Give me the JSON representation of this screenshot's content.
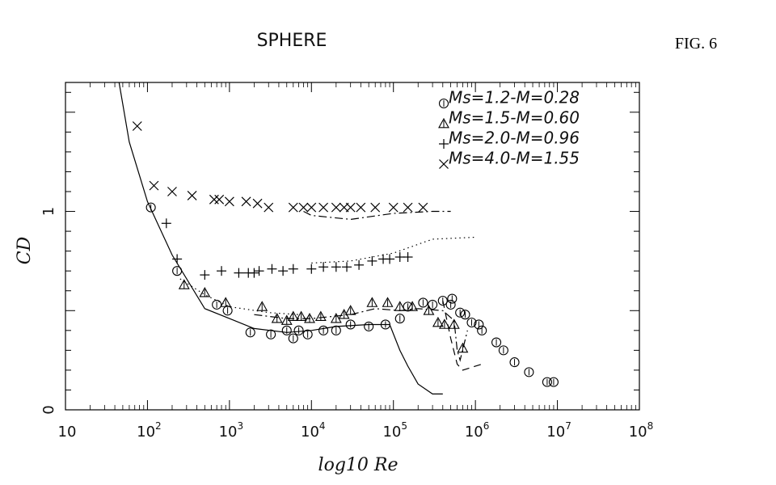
{
  "figure_label": "FIG. 6",
  "chart_data": {
    "type": "scatter",
    "title": "SPHERE",
    "xlabel": "log10 Re",
    "ylabel": "CD",
    "x_scale": "log",
    "xlim": [
      10,
      100000000
    ],
    "ylim": [
      0,
      1.65
    ],
    "x_ticks": [
      {
        "base": "10",
        "exp": ""
      },
      {
        "base": "10",
        "exp": "2"
      },
      {
        "base": "10",
        "exp": "3"
      },
      {
        "base": "10",
        "exp": "4"
      },
      {
        "base": "10",
        "exp": "5"
      },
      {
        "base": "10",
        "exp": "6"
      },
      {
        "base": "10",
        "exp": "7"
      },
      {
        "base": "10",
        "exp": "8"
      }
    ],
    "y_ticks": [
      "0",
      "1"
    ],
    "legend_position": "top-right",
    "series": [
      {
        "name": "Ms=1.2-M=0.28",
        "marker": "circle",
        "points": [
          [
            110,
            1.02
          ],
          [
            230,
            0.7
          ],
          [
            700,
            0.53
          ],
          [
            950,
            0.5
          ],
          [
            1800,
            0.39
          ],
          [
            3200,
            0.38
          ],
          [
            5000,
            0.4
          ],
          [
            6000,
            0.36
          ],
          [
            7000,
            0.4
          ],
          [
            9000,
            0.38
          ],
          [
            14000,
            0.4
          ],
          [
            20000,
            0.4
          ],
          [
            30000,
            0.43
          ],
          [
            50000,
            0.42
          ],
          [
            80000,
            0.43
          ],
          [
            120000,
            0.46
          ],
          [
            150000,
            0.52
          ],
          [
            230000,
            0.54
          ],
          [
            300000,
            0.53
          ],
          [
            400000,
            0.55
          ],
          [
            500000,
            0.53
          ],
          [
            520000,
            0.56
          ],
          [
            650000,
            0.49
          ],
          [
            750000,
            0.48
          ],
          [
            900000,
            0.44
          ],
          [
            1100000,
            0.43
          ],
          [
            1200000,
            0.4
          ],
          [
            1800000,
            0.34
          ],
          [
            2200000,
            0.3
          ],
          [
            3000000,
            0.24
          ],
          [
            4500000,
            0.19
          ],
          [
            7500000,
            0.14
          ],
          [
            9000000,
            0.14
          ]
        ]
      },
      {
        "name": "Ms=1.5-M=0.60",
        "marker": "triangle",
        "points": [
          [
            280,
            0.63
          ],
          [
            500,
            0.59
          ],
          [
            900,
            0.54
          ],
          [
            2500,
            0.52
          ],
          [
            3800,
            0.46
          ],
          [
            5000,
            0.45
          ],
          [
            6000,
            0.47
          ],
          [
            7500,
            0.47
          ],
          [
            9500,
            0.46
          ],
          [
            13000,
            0.47
          ],
          [
            20000,
            0.46
          ],
          [
            25000,
            0.48
          ],
          [
            30000,
            0.5
          ],
          [
            55000,
            0.54
          ],
          [
            85000,
            0.54
          ],
          [
            120000,
            0.52
          ],
          [
            170000,
            0.52
          ],
          [
            270000,
            0.5
          ],
          [
            350000,
            0.44
          ],
          [
            420000,
            0.43
          ],
          [
            550000,
            0.43
          ],
          [
            700000,
            0.31
          ]
        ]
      },
      {
        "name": "Ms=2.0-M=0.96",
        "marker": "plus",
        "points": [
          [
            170,
            0.94
          ],
          [
            230,
            0.76
          ],
          [
            500,
            0.68
          ],
          [
            800,
            0.7
          ],
          [
            1300,
            0.69
          ],
          [
            1700,
            0.69
          ],
          [
            2000,
            0.69
          ],
          [
            2300,
            0.7
          ],
          [
            3300,
            0.71
          ],
          [
            4500,
            0.7
          ],
          [
            6000,
            0.71
          ],
          [
            10000,
            0.71
          ],
          [
            14000,
            0.72
          ],
          [
            20000,
            0.72
          ],
          [
            27000,
            0.72
          ],
          [
            38000,
            0.73
          ],
          [
            55000,
            0.75
          ],
          [
            75000,
            0.76
          ],
          [
            90000,
            0.76
          ],
          [
            120000,
            0.77
          ],
          [
            150000,
            0.77
          ]
        ]
      },
      {
        "name": "Ms=4.0-M=1.55",
        "marker": "x",
        "points": [
          [
            75,
            1.43
          ],
          [
            120,
            1.13
          ],
          [
            200,
            1.1
          ],
          [
            350,
            1.08
          ],
          [
            650,
            1.06
          ],
          [
            750,
            1.06
          ],
          [
            1000,
            1.05
          ],
          [
            1600,
            1.05
          ],
          [
            2200,
            1.04
          ],
          [
            3000,
            1.02
          ],
          [
            6000,
            1.02
          ],
          [
            8000,
            1.02
          ],
          [
            10000,
            1.02
          ],
          [
            14000,
            1.02
          ],
          [
            20000,
            1.02
          ],
          [
            25000,
            1.02
          ],
          [
            30000,
            1.02
          ],
          [
            40000,
            1.02
          ],
          [
            60000,
            1.02
          ],
          [
            100000,
            1.02
          ],
          [
            150000,
            1.02
          ],
          [
            230000,
            1.02
          ]
        ]
      }
    ],
    "lines": [
      {
        "style": "solid",
        "points": [
          [
            45,
            1.65
          ],
          [
            60,
            1.35
          ],
          [
            100,
            1.05
          ],
          [
            200,
            0.78
          ],
          [
            500,
            0.51
          ],
          [
            1000,
            0.46
          ],
          [
            2000,
            0.41
          ],
          [
            5000,
            0.39
          ],
          [
            10000,
            0.4
          ],
          [
            20000,
            0.42
          ],
          [
            50000,
            0.43
          ],
          [
            90000,
            0.43
          ],
          [
            120000,
            0.3
          ],
          [
            150000,
            0.22
          ],
          [
            200000,
            0.13
          ],
          [
            300000,
            0.08
          ],
          [
            400000,
            0.08
          ]
        ]
      },
      {
        "style": "dotted",
        "points": [
          [
            10000,
            0.74
          ],
          [
            30000,
            0.75
          ],
          [
            100000,
            0.79
          ],
          [
            300000,
            0.86
          ],
          [
            1000000,
            0.87
          ]
        ]
      },
      {
        "style": "dashdot",
        "points": [
          [
            8000,
            1.0
          ],
          [
            10000,
            0.98
          ],
          [
            30000,
            0.96
          ],
          [
            100000,
            0.99
          ],
          [
            300000,
            1.0
          ],
          [
            500000,
            1.0
          ]
        ]
      },
      {
        "style": "dotted",
        "points": [
          [
            250,
            0.66
          ],
          [
            500,
            0.58
          ],
          [
            1000,
            0.52
          ],
          [
            3000,
            0.49
          ],
          [
            7000,
            0.48
          ]
        ]
      },
      {
        "style": "dashdot",
        "points": [
          [
            2000,
            0.48
          ],
          [
            5000,
            0.46
          ],
          [
            10000,
            0.46
          ],
          [
            30000,
            0.48
          ],
          [
            60000,
            0.51
          ],
          [
            120000,
            0.5
          ],
          [
            200000,
            0.51
          ],
          [
            400000,
            0.5
          ],
          [
            550000,
            0.45
          ],
          [
            600000,
            0.3
          ],
          [
            650000,
            0.25
          ],
          [
            800000,
            0.4
          ]
        ]
      },
      {
        "style": "dashed",
        "points": [
          [
            400000,
            0.55
          ],
          [
            500000,
            0.36
          ],
          [
            600000,
            0.23
          ],
          [
            700000,
            0.2
          ],
          [
            1200000,
            0.23
          ]
        ]
      }
    ]
  }
}
